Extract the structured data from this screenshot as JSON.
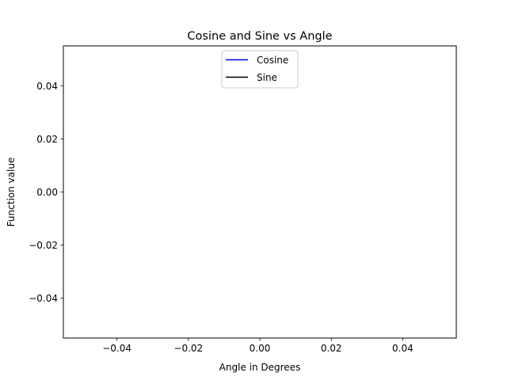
{
  "chart_data": {
    "type": "line",
    "title": "Cosine and Sine vs Angle",
    "xlabel": "Angle in Degrees",
    "ylabel": "Function value",
    "xlim": [
      -0.055,
      0.055
    ],
    "ylim": [
      -0.055,
      0.055
    ],
    "xticks": [
      -0.04,
      -0.02,
      0.0,
      0.02,
      0.04
    ],
    "yticks": [
      -0.04,
      -0.02,
      0.0,
      0.02,
      0.04
    ],
    "xtick_labels": [
      "−0.04",
      "−0.02",
      "0.00",
      "0.02",
      "0.04"
    ],
    "ytick_labels": [
      "−0.04",
      "−0.02",
      "0.00",
      "0.02",
      "0.04"
    ],
    "grid": false,
    "legend_position": "upper center",
    "series": [
      {
        "name": "Cosine",
        "color": "#0000ff",
        "x": [],
        "y": []
      },
      {
        "name": "Sine",
        "color": "#000000",
        "x": [],
        "y": []
      }
    ]
  }
}
